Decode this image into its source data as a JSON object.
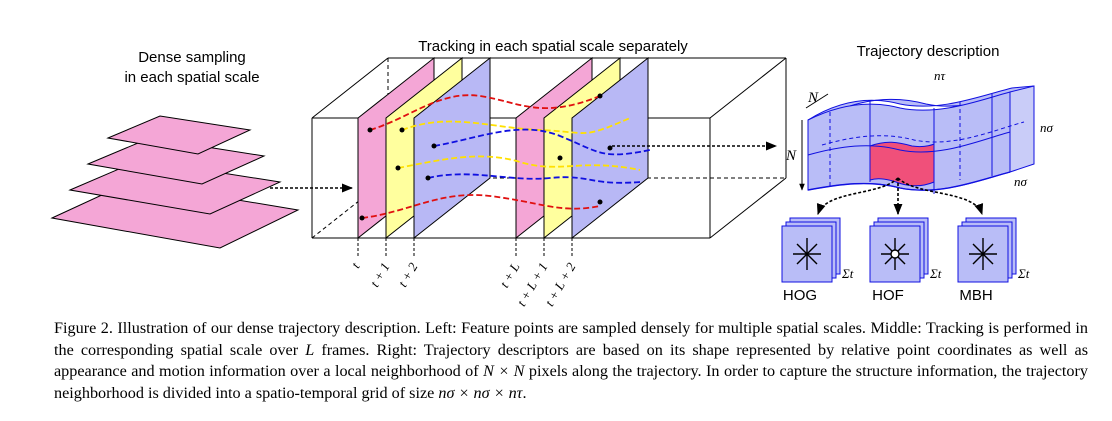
{
  "figure": {
    "left_label_line1": "Dense sampling",
    "left_label_line2": "in each spatial scale",
    "middle_title": "Tracking in each spatial scale separately",
    "right_title": "Trajectory description",
    "frame_labels_group1": [
      "t",
      "t + 1",
      "t + 2"
    ],
    "frame_labels_group2": [
      "t + L",
      "t + L + 1",
      "t + L + 2"
    ],
    "dim_label_N": "N",
    "n_tau": "nτ",
    "n_sigma": "nσ",
    "sum_t": "Σt",
    "descriptors": [
      "HOG",
      "HOF",
      "MBH"
    ],
    "colors": {
      "pink": "#f4a6d6",
      "yellow": "#ffff9e",
      "lavender": "#b8b8f5",
      "blue": "#1010e0",
      "red": "#e01010",
      "light_blue_fill": "#b9bdf7",
      "cell_red": "#f0507a"
    }
  },
  "caption": {
    "prefix": "Figure 2. Illustration of our dense trajectory description. Left: Feature points are sampled densely for multiple spatial scales. Middle: Tracking is performed in the corresponding spatial scale over ",
    "L": "L",
    "middle": " frames. Right: Trajectory descriptors are based on its shape represented by relative point coordinates as well as appearance and motion information over a local neighborhood of ",
    "NxN": "N × N",
    "middle2": " pixels along the trajectory. In order to capture the structure information, the trajectory neighborhood is divided into a spatio-temporal grid of size ",
    "grid": "nσ × nσ × nτ",
    "end": "."
  }
}
